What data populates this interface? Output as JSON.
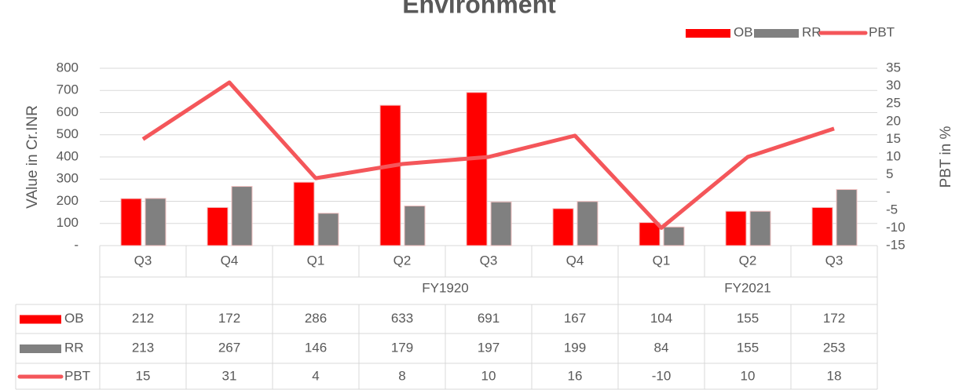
{
  "chart_data": {
    "type": "bar_line_table",
    "title": "Environment",
    "categories": [
      "Q3",
      "Q4",
      "Q1",
      "Q2",
      "Q3",
      "Q4",
      "Q1",
      "Q2",
      "Q3"
    ],
    "group_labels": [
      null,
      null,
      "FY1920",
      "FY1920",
      "FY1920",
      "FY1920",
      "FY2021",
      "FY2021",
      "FY2021"
    ],
    "series": [
      {
        "name": "OB",
        "color": "#ff0000",
        "type": "bar",
        "values": [
          212,
          172,
          286,
          633,
          691,
          167,
          104,
          155,
          172
        ]
      },
      {
        "name": "RR",
        "color": "#808080",
        "type": "bar",
        "values": [
          213,
          267,
          146,
          179,
          197,
          199,
          84,
          155,
          253
        ]
      },
      {
        "name": "PBT",
        "color": "#f4565a",
        "type": "line",
        "axis": "y2",
        "values": [
          15,
          31,
          4,
          8,
          10,
          16,
          -10,
          10,
          18
        ]
      }
    ],
    "ylabel": "VAlue in Cr.INR",
    "y2label": "PBT in %",
    "ylim": [
      0,
      800
    ],
    "yticks": [
      {
        "value": 0,
        "label": "-"
      },
      100,
      200,
      300,
      400,
      500,
      600,
      700,
      800
    ],
    "y2lim": [
      -15,
      35
    ],
    "y2ticks": [
      -15,
      -10,
      -5,
      {
        "value": 0,
        "label": "-"
      },
      5,
      10,
      15,
      20,
      25,
      30,
      35
    ],
    "grid": true,
    "legend": "top-right"
  }
}
